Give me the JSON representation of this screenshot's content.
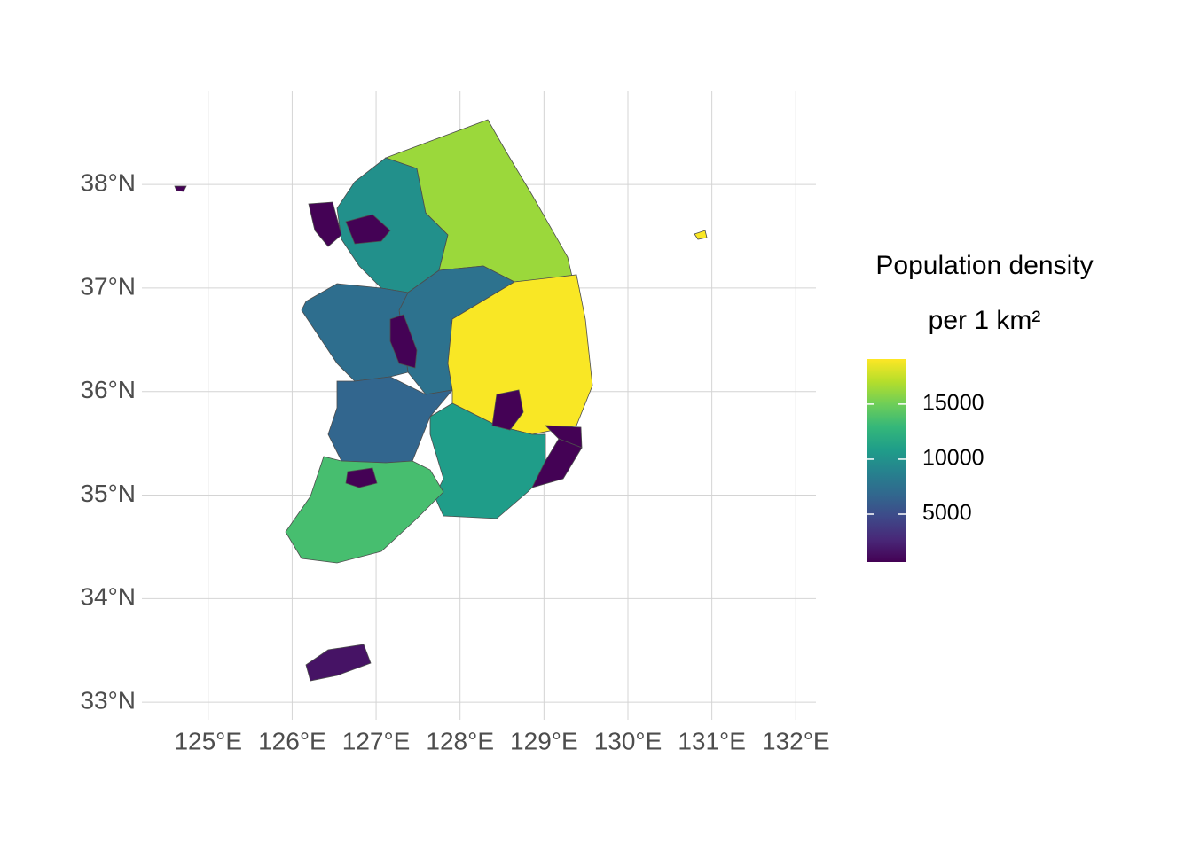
{
  "chart_data": {
    "type": "choropleth",
    "legend_title": [
      "Population density",
      "per 1 km²"
    ],
    "colormap": "viridis",
    "grid": true,
    "xlim": [
      124.21,
      132.24
    ],
    "ylim": [
      32.83,
      38.9
    ],
    "xticks": [
      {
        "value": 125,
        "label": "125°E"
      },
      {
        "value": 126,
        "label": "126°E"
      },
      {
        "value": 127,
        "label": "127°E"
      },
      {
        "value": 128,
        "label": "128°E"
      },
      {
        "value": 129,
        "label": "129°E"
      },
      {
        "value": 130,
        "label": "130°E"
      },
      {
        "value": 131,
        "label": "131°E"
      },
      {
        "value": 132,
        "label": "132°E"
      }
    ],
    "yticks": [
      {
        "value": 33,
        "label": "33°N"
      },
      {
        "value": 34,
        "label": "34°N"
      },
      {
        "value": 35,
        "label": "35°N"
      },
      {
        "value": 36,
        "label": "36°N"
      },
      {
        "value": 37,
        "label": "37°N"
      },
      {
        "value": 38,
        "label": "38°N"
      }
    ],
    "colorbar_lim": [
      650,
      19100
    ],
    "colorbar_ticks": [
      5000,
      10000,
      15000
    ],
    "values": [
      9900,
      16300,
      7600,
      7300,
      6700,
      19000,
      10800,
      13600,
      700,
      700,
      700,
      700,
      700,
      700,
      1600
    ]
  }
}
